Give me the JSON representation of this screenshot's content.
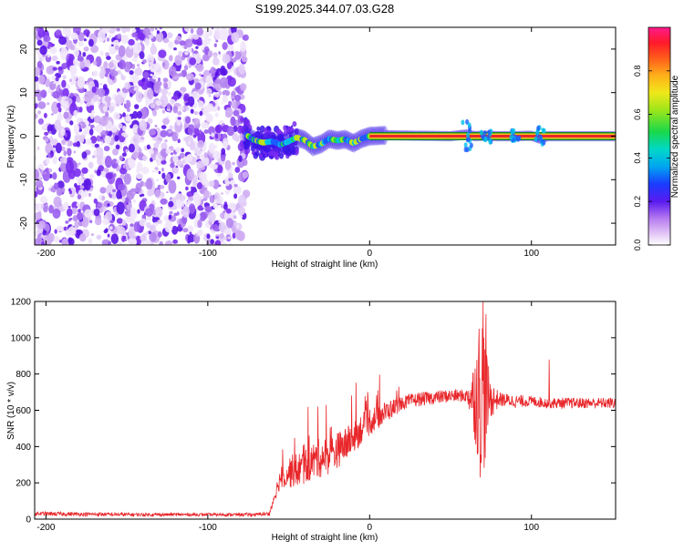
{
  "title": "S199.2025.344.07.03.G28",
  "colors": {
    "snr_line": "#e8262a",
    "spectrum_point": "#7a1cf0",
    "spectrum_light": "#c9a6f4",
    "carrier_band_edge": "#0a7a2a",
    "carrier_band_core": "#e8262a",
    "axis": "#000000"
  },
  "chart_data": [
    {
      "type": "heatmap",
      "name": "spectrogram",
      "xlabel": "Height of straight line (km)",
      "ylabel": "Frequency (Hz)",
      "xlim": [
        -207,
        152
      ],
      "ylim": [
        -25,
        25
      ],
      "x_ticks": [
        -200,
        -100,
        0,
        100
      ],
      "x_tick_labels": [
        "-200",
        "-100",
        "0",
        "100"
      ],
      "y_ticks": [
        -20,
        -10,
        0,
        10,
        20
      ],
      "y_tick_labels": [
        "-20",
        "-10",
        "0",
        "10",
        "20"
      ],
      "noise_region_km": [
        -207,
        -76
      ],
      "carrier_track": {
        "x": [
          -77,
          -72,
          -66,
          -60,
          -55,
          -50,
          -45,
          -40,
          -35,
          -30,
          -25,
          -20,
          -15,
          -10,
          -5,
          0,
          10,
          30,
          50,
          60,
          65,
          70,
          80,
          90,
          100,
          105,
          110,
          130,
          152
        ],
        "y": [
          0.5,
          -0.8,
          -1.5,
          -1.2,
          -2.0,
          -1.2,
          -0.3,
          -0.9,
          -2.4,
          -1.8,
          -0.6,
          -1.0,
          -0.7,
          -1.6,
          -0.6,
          0.0,
          0.2,
          0.1,
          0.0,
          0.4,
          0.0,
          0.1,
          0.0,
          0.0,
          0.1,
          -0.6,
          0.0,
          0.0,
          0.0
        ]
      },
      "colorbar": {
        "label": "Normalized spectral amplitude",
        "range": [
          0,
          1
        ],
        "ticks": [
          0.0,
          0.2,
          0.4,
          0.6,
          0.8
        ],
        "tick_labels": [
          "0.0",
          "0.2",
          "0.4",
          "0.6",
          "0.8"
        ]
      }
    },
    {
      "type": "line",
      "name": "snr",
      "xlabel": "Height of straight line (km)",
      "ylabel": "SNR (10 * v/v)",
      "xlim": [
        -207,
        152
      ],
      "ylim": [
        0,
        1200
      ],
      "x_ticks": [
        -200,
        -100,
        0,
        100
      ],
      "x_tick_labels": [
        "-200",
        "-100",
        "0",
        "100"
      ],
      "y_ticks": [
        0,
        200,
        400,
        600,
        800,
        1000,
        1200
      ],
      "y_tick_labels": [
        "0",
        "200",
        "400",
        "600",
        "800",
        "1000",
        "1200"
      ],
      "envelope": {
        "x": [
          -207,
          -150,
          -100,
          -70,
          -62,
          -58,
          -55,
          -50,
          -45,
          -40,
          -35,
          -30,
          -25,
          -20,
          -15,
          -10,
          -5,
          0,
          10,
          20,
          30,
          40,
          50,
          60,
          65,
          68,
          70,
          72,
          75,
          80,
          90,
          100,
          110,
          120,
          130,
          140,
          152
        ],
        "y": [
          30,
          25,
          25,
          25,
          30,
          150,
          230,
          260,
          270,
          290,
          320,
          340,
          350,
          380,
          410,
          450,
          500,
          540,
          590,
          640,
          660,
          670,
          680,
          680,
          680,
          690,
          700,
          680,
          660,
          660,
          650,
          650,
          640,
          640,
          640,
          640,
          640
        ]
      },
      "noise_amplitude": {
        "x": [
          -207,
          -100,
          -62,
          -50,
          -30,
          0,
          20,
          60,
          64,
          69,
          71,
          74,
          80,
          100,
          152
        ],
        "y": [
          12,
          8,
          10,
          90,
          110,
          80,
          40,
          35,
          180,
          520,
          420,
          120,
          40,
          30,
          30
        ]
      },
      "peaks": [
        {
          "x": -32,
          "y": 620
        },
        {
          "x": 70,
          "y": 1200
        },
        {
          "x": 72,
          "y": 1130
        },
        {
          "x": 111,
          "y": 880
        }
      ]
    }
  ]
}
